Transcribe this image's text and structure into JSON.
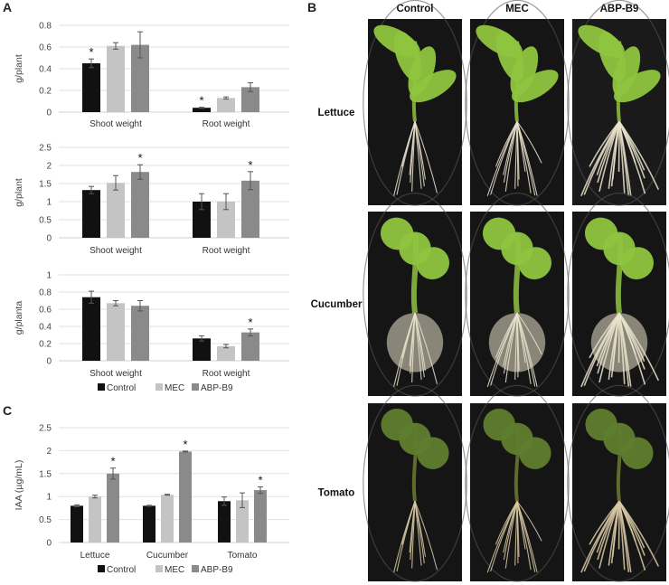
{
  "panel_labels": {
    "a": "A",
    "b": "B",
    "c": "C"
  },
  "colors": {
    "control": "#111111",
    "mec": "#c4c4c4",
    "abp": "#8a8a8a",
    "grid": "#e2e2e2",
    "axis": "#d0d0d0"
  },
  "chart_data": [
    {
      "type": "bar",
      "ylabel": "g/plant",
      "ylim": [
        0,
        0.8
      ],
      "yticks": [
        "0",
        "0.2",
        "0.4",
        "0.6",
        "0.8"
      ],
      "categories": [
        "Shoot weight",
        "Root weight"
      ],
      "series": [
        {
          "name": "Control",
          "values": [
            0.45,
            0.04
          ],
          "errors": [
            0.04,
            0.005
          ]
        },
        {
          "name": "MEC",
          "values": [
            0.61,
            0.13
          ],
          "errors": [
            0.03,
            0.01
          ]
        },
        {
          "name": "ABP-B9",
          "values": [
            0.62,
            0.23
          ],
          "errors": [
            0.12,
            0.04
          ]
        }
      ],
      "annotations": [
        {
          "category": 0,
          "series": 0,
          "text": "*"
        },
        {
          "category": 1,
          "series": 0,
          "text": "*"
        }
      ]
    },
    {
      "type": "bar",
      "ylabel": "g/plant",
      "ylim": [
        0,
        2.5
      ],
      "yticks": [
        "0",
        "0.5",
        "1",
        "1.5",
        "2",
        "2.5"
      ],
      "categories": [
        "Shoot weight",
        "Root weight"
      ],
      "series": [
        {
          "name": "Control",
          "values": [
            1.32,
            1.0
          ],
          "errors": [
            0.1,
            0.22
          ]
        },
        {
          "name": "MEC",
          "values": [
            1.52,
            1.0
          ],
          "errors": [
            0.2,
            0.22
          ]
        },
        {
          "name": "ABP-B9",
          "values": [
            1.82,
            1.58
          ],
          "errors": [
            0.2,
            0.25
          ]
        }
      ],
      "annotations": [
        {
          "category": 0,
          "series": 2,
          "text": "*"
        },
        {
          "category": 1,
          "series": 2,
          "text": "*"
        }
      ]
    },
    {
      "type": "bar",
      "ylabel": "g/planta",
      "ylim": [
        0,
        1
      ],
      "yticks": [
        "0",
        "0.2",
        "0.4",
        "0.6",
        "0.8",
        "1"
      ],
      "categories": [
        "Shoot weight",
        "Root weight"
      ],
      "series": [
        {
          "name": "Control",
          "values": [
            0.74,
            0.26
          ],
          "errors": [
            0.07,
            0.03
          ]
        },
        {
          "name": "MEC",
          "values": [
            0.67,
            0.17
          ],
          "errors": [
            0.03,
            0.02
          ]
        },
        {
          "name": "ABP-B9",
          "values": [
            0.64,
            0.33
          ],
          "errors": [
            0.06,
            0.04
          ]
        }
      ],
      "annotations": [
        {
          "category": 1,
          "series": 2,
          "text": "*"
        }
      ],
      "legend": [
        "Control",
        "MEC",
        "ABP-B9"
      ]
    },
    {
      "type": "bar",
      "ylabel": "IAA (µg/mL)",
      "ylim": [
        0,
        2.5
      ],
      "yticks": [
        "0",
        "0.5",
        "1",
        "1.5",
        "2",
        "2.5"
      ],
      "categories": [
        "Lettuce",
        "Cucumber",
        "Tomato"
      ],
      "series": [
        {
          "name": "Control",
          "values": [
            0.8,
            0.8,
            0.9
          ],
          "errors": [
            0.02,
            0.01,
            0.09
          ]
        },
        {
          "name": "MEC",
          "values": [
            1.0,
            1.04,
            0.92
          ],
          "errors": [
            0.03,
            0.01,
            0.16
          ]
        },
        {
          "name": "ABP-B9",
          "values": [
            1.5,
            1.98,
            1.14
          ],
          "errors": [
            0.12,
            0.01,
            0.07
          ]
        }
      ],
      "annotations": [
        {
          "category": 0,
          "series": 2,
          "text": "*"
        },
        {
          "category": 1,
          "series": 2,
          "text": "*"
        },
        {
          "category": 2,
          "series": 2,
          "text": "*"
        }
      ],
      "legend": [
        "Control",
        "MEC",
        "ABP-B9"
      ]
    }
  ],
  "photos": {
    "columns": [
      "Control",
      "MEC",
      "ABP-B9"
    ],
    "rows": [
      "Lettuce",
      "Cucumber",
      "Tomato"
    ]
  }
}
